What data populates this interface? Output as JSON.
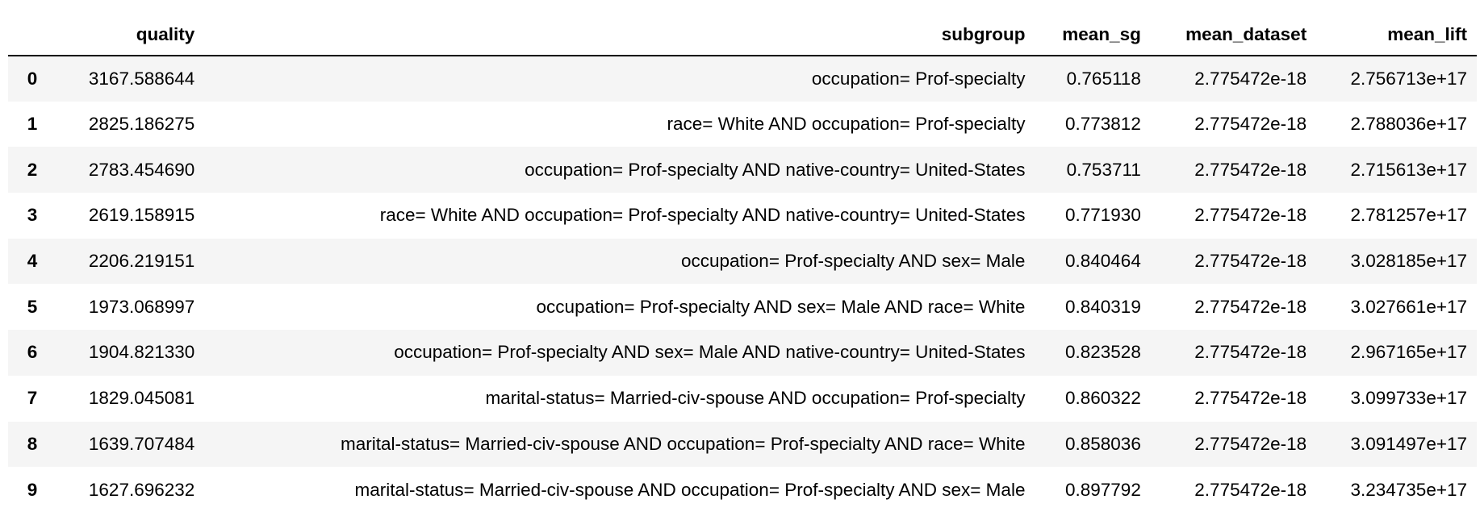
{
  "table": {
    "columns": [
      "",
      "quality",
      "subgroup",
      "mean_sg",
      "mean_dataset",
      "mean_lift"
    ],
    "rows": [
      {
        "index": "0",
        "quality": "3167.588644",
        "subgroup": "occupation= Prof-specialty",
        "mean_sg": "0.765118",
        "mean_dataset": "2.775472e-18",
        "mean_lift": "2.756713e+17"
      },
      {
        "index": "1",
        "quality": "2825.186275",
        "subgroup": "race= White AND occupation= Prof-specialty",
        "mean_sg": "0.773812",
        "mean_dataset": "2.775472e-18",
        "mean_lift": "2.788036e+17"
      },
      {
        "index": "2",
        "quality": "2783.454690",
        "subgroup": "occupation= Prof-specialty AND native-country= United-States",
        "mean_sg": "0.753711",
        "mean_dataset": "2.775472e-18",
        "mean_lift": "2.715613e+17"
      },
      {
        "index": "3",
        "quality": "2619.158915",
        "subgroup": "race= White AND occupation= Prof-specialty AND native-country= United-States",
        "mean_sg": "0.771930",
        "mean_dataset": "2.775472e-18",
        "mean_lift": "2.781257e+17"
      },
      {
        "index": "4",
        "quality": "2206.219151",
        "subgroup": "occupation= Prof-specialty AND sex= Male",
        "mean_sg": "0.840464",
        "mean_dataset": "2.775472e-18",
        "mean_lift": "3.028185e+17"
      },
      {
        "index": "5",
        "quality": "1973.068997",
        "subgroup": "occupation= Prof-specialty AND sex= Male AND race= White",
        "mean_sg": "0.840319",
        "mean_dataset": "2.775472e-18",
        "mean_lift": "3.027661e+17"
      },
      {
        "index": "6",
        "quality": "1904.821330",
        "subgroup": "occupation= Prof-specialty AND sex= Male AND native-country= United-States",
        "mean_sg": "0.823528",
        "mean_dataset": "2.775472e-18",
        "mean_lift": "2.967165e+17"
      },
      {
        "index": "7",
        "quality": "1829.045081",
        "subgroup": "marital-status= Married-civ-spouse AND occupation= Prof-specialty",
        "mean_sg": "0.860322",
        "mean_dataset": "2.775472e-18",
        "mean_lift": "3.099733e+17"
      },
      {
        "index": "8",
        "quality": "1639.707484",
        "subgroup": "marital-status= Married-civ-spouse AND occupation= Prof-specialty AND race= White",
        "mean_sg": "0.858036",
        "mean_dataset": "2.775472e-18",
        "mean_lift": "3.091497e+17"
      },
      {
        "index": "9",
        "quality": "1627.696232",
        "subgroup": "marital-status= Married-civ-spouse AND occupation= Prof-specialty AND sex= Male",
        "mean_sg": "0.897792",
        "mean_dataset": "2.775472e-18",
        "mean_lift": "3.234735e+17"
      }
    ]
  }
}
